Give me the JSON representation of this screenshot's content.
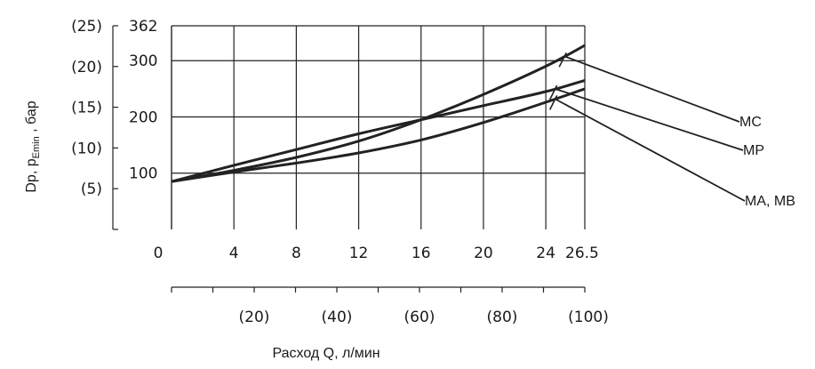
{
  "chart_data": {
    "type": "line",
    "xlabel": "Расход Q, л/мин",
    "ylabel_main": "Dp, p",
    "ylabel_sub": "Emin",
    "ylabel_tail": " , бар",
    "x_ticks": [
      "0",
      "4",
      "8",
      "12",
      "16",
      "20",
      "24",
      "26.5"
    ],
    "x_tick_values": [
      0,
      4,
      8,
      12,
      16,
      20,
      24,
      26.5
    ],
    "x2_ticks": [
      "(20)",
      "(40)",
      "(60)",
      "(80)",
      "(100)"
    ],
    "x2_tick_values": [
      20,
      40,
      60,
      80,
      100
    ],
    "y_ticks": [
      "100",
      "200",
      "300",
      "362"
    ],
    "y_tick_values": [
      100,
      200,
      300,
      362
    ],
    "y2_ticks": [
      "(5)",
      "(10)",
      "(15)",
      "(20)",
      "(25)"
    ],
    "y2_tick_values": [
      5,
      10,
      15,
      20,
      25
    ],
    "xlim": [
      0,
      26.5
    ],
    "ylim": [
      0,
      362
    ],
    "x2lim": [
      0,
      100
    ],
    "y2lim": [
      0,
      25
    ],
    "grid": true,
    "series": [
      {
        "name": "MC",
        "x": [
          0,
          4,
          8,
          12,
          16,
          20,
          24,
          26.5
        ],
        "y": [
          85,
          105,
          128,
          157,
          195,
          240,
          290,
          327
        ]
      },
      {
        "name": "MP",
        "x": [
          0,
          4,
          8,
          12,
          16,
          20,
          24,
          26.5
        ],
        "y": [
          85,
          114,
          142,
          170,
          195,
          220,
          245,
          265
        ]
      },
      {
        "name": "MA, MB",
        "x": [
          0,
          4,
          8,
          12,
          16,
          20,
          24,
          26.5
        ],
        "y": [
          85,
          102,
          118,
          136,
          159,
          190,
          226,
          250
        ]
      }
    ]
  }
}
